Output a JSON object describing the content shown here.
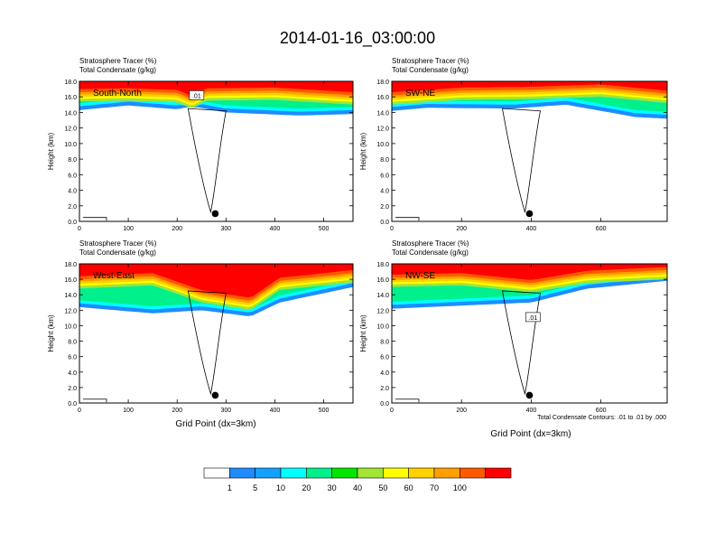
{
  "figure": {
    "title": "2014-01-16_03:00:00",
    "x_label": "Grid Point (dx=3km)",
    "contour_note": "Total Condensate Contours: .01 to .01 by .000"
  },
  "colorbar": {
    "colors": [
      "#ffffff",
      "#1e8cff",
      "#14a0ff",
      "#00ffff",
      "#00f08c",
      "#00e600",
      "#a0e632",
      "#ffff00",
      "#ffd200",
      "#ffa000",
      "#ff5a00",
      "#ff0000"
    ],
    "labels": [
      "1",
      "5",
      "10",
      "20",
      "30",
      "40",
      "50",
      "60",
      "70",
      "100"
    ]
  },
  "chart_data": [
    {
      "type": "area",
      "panel": "South-North",
      "subtitle_1": "Stratosphere Tracer   (%)",
      "subtitle_2": "Total Condensate   (g/kg)",
      "ylabel": "Height (km)",
      "xlim": [
        0,
        560
      ],
      "ylim": [
        0,
        18
      ],
      "xticks": [
        0,
        100,
        200,
        300,
        400,
        500
      ],
      "yticks": [
        "0.0",
        "2.0",
        "4.0",
        "6.0",
        "8.0",
        "10.0",
        "12.0",
        "14.0",
        "16.0",
        "18.0"
      ],
      "contour_label": ".01",
      "marker": {
        "x": 278,
        "y": 1.0
      },
      "tracer_base_km": [
        [
          0,
          15.4
        ],
        [
          100,
          15.5
        ],
        [
          200,
          15.3
        ],
        [
          230,
          14.5
        ],
        [
          260,
          15.5
        ],
        [
          400,
          15.6
        ],
        [
          560,
          15.0
        ]
      ],
      "cloud_top_km": [
        [
          0,
          14.3
        ],
        [
          100,
          14.9
        ],
        [
          200,
          14.4
        ],
        [
          230,
          14.8
        ],
        [
          300,
          14.0
        ],
        [
          450,
          13.6
        ],
        [
          560,
          13.8
        ]
      ]
    },
    {
      "type": "area",
      "panel": "SW-NE",
      "subtitle_1": "Stratosphere Tracer   (%)",
      "subtitle_2": "Total Condensate   (g/kg)",
      "ylabel": "Height (km)",
      "xlim": [
        0,
        790
      ],
      "ylim": [
        0,
        18
      ],
      "xticks": [
        0,
        200,
        400,
        600
      ],
      "yticks": [
        "0.0",
        "2.0",
        "4.0",
        "6.0",
        "8.0",
        "10.0",
        "12.0",
        "14.0",
        "16.0",
        "18.0"
      ],
      "marker": {
        "x": 395,
        "y": 1.0
      },
      "tracer_base_km": [
        [
          0,
          15.0
        ],
        [
          200,
          15.6
        ],
        [
          400,
          15.7
        ],
        [
          600,
          16.0
        ],
        [
          790,
          15.2
        ]
      ],
      "cloud_top_km": [
        [
          0,
          14.2
        ],
        [
          100,
          14.6
        ],
        [
          350,
          14.5
        ],
        [
          500,
          15.0
        ],
        [
          700,
          13.4
        ],
        [
          790,
          13.2
        ]
      ]
    },
    {
      "type": "area",
      "panel": "West-East",
      "subtitle_1": "Stratosphere Tracer   (%)",
      "subtitle_2": "Total Condensate   (g/kg)",
      "ylabel": "Height (km)",
      "xlim": [
        0,
        560
      ],
      "ylim": [
        0,
        18
      ],
      "xticks": [
        0,
        100,
        200,
        300,
        400,
        500
      ],
      "yticks": [
        "0.0",
        "2.0",
        "4.0",
        "6.0",
        "8.0",
        "10.0",
        "12.0",
        "14.0",
        "16.0",
        "18.0"
      ],
      "marker": {
        "x": 278,
        "y": 1.0
      },
      "tracer_base_km": [
        [
          0,
          14.8
        ],
        [
          150,
          15.2
        ],
        [
          250,
          13.0
        ],
        [
          350,
          12.0
        ],
        [
          410,
          14.6
        ],
        [
          560,
          15.6
        ]
      ],
      "cloud_top_km": [
        [
          0,
          12.4
        ],
        [
          150,
          11.6
        ],
        [
          250,
          12.0
        ],
        [
          350,
          11.2
        ],
        [
          410,
          13.0
        ],
        [
          560,
          15.0
        ]
      ]
    },
    {
      "type": "area",
      "panel": "NW-SE",
      "subtitle_1": "Stratosphere Tracer   (%)",
      "subtitle_2": "Total Condensate   (g/kg)",
      "ylabel": "Height (km)",
      "xlim": [
        0,
        790
      ],
      "ylim": [
        0,
        18
      ],
      "xticks": [
        0,
        200,
        400,
        600
      ],
      "yticks": [
        "0.0",
        "2.0",
        "4.0",
        "6.0",
        "8.0",
        "10.0",
        "12.0",
        "14.0",
        "16.0",
        "18.0"
      ],
      "contour_label": ".01",
      "marker": {
        "x": 395,
        "y": 1.0
      },
      "tracer_base_km": [
        [
          0,
          15.0
        ],
        [
          200,
          15.2
        ],
        [
          400,
          14.3
        ],
        [
          560,
          15.5
        ],
        [
          790,
          16.0
        ]
      ],
      "cloud_top_km": [
        [
          0,
          12.2
        ],
        [
          200,
          12.6
        ],
        [
          400,
          13.0
        ],
        [
          560,
          14.8
        ],
        [
          790,
          15.8
        ]
      ]
    }
  ]
}
